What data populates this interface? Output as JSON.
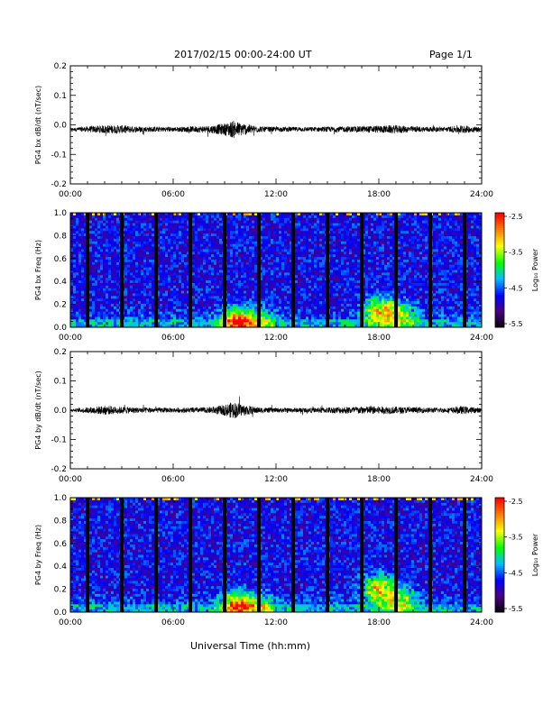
{
  "header": {
    "title": "2017/02/15  00:00-24:00 UT",
    "page": "Page 1/1"
  },
  "footer": {
    "xlabel": "Universal Time (hh:mm)"
  },
  "colorbar": {
    "title": "Log₁₀ Power",
    "ticks": [
      "-2.5",
      "-3.5",
      "-4.5",
      "-5.5"
    ],
    "range": [
      -5.5,
      -2.5
    ],
    "colors": [
      "#000000",
      "#4b0082",
      "#0000ff",
      "#00bfff",
      "#00ff00",
      "#ffff00",
      "#ff8000",
      "#ff0000"
    ]
  },
  "chart_data": [
    {
      "type": "line",
      "ylabel": "PG4 bx dB/dt (nT/sec)",
      "ylim": [
        -0.2,
        0.2
      ],
      "yticks": [
        "0.2",
        "0.1",
        "0.0",
        "-0.1",
        "-0.2"
      ],
      "xlim": [
        "00:00",
        "24:00"
      ],
      "xticks": [
        "00:00",
        "06:00",
        "12:00",
        "18:00",
        "24:00"
      ],
      "baseline": -0.015,
      "envelope": {
        "x": [
          "00:00",
          "01:00",
          "02:00",
          "03:00",
          "04:00",
          "06:00",
          "08:00",
          "09:00",
          "09:30",
          "10:00",
          "11:00",
          "12:00",
          "14:00",
          "16:00",
          "18:00",
          "19:00",
          "20:00",
          "22:00",
          "22:45",
          "24:00"
        ],
        "amplitude": [
          0.004,
          0.01,
          0.014,
          0.014,
          0.01,
          0.008,
          0.012,
          0.02,
          0.03,
          0.022,
          0.01,
          0.008,
          0.008,
          0.01,
          0.012,
          0.014,
          0.01,
          0.008,
          0.014,
          0.008
        ]
      }
    },
    {
      "type": "heatmap",
      "ylabel": "PG4 bx Freq (Hz)",
      "ylim": [
        0.0,
        1.0
      ],
      "yticks": [
        "1.0",
        "0.8",
        "0.6",
        "0.4",
        "0.2",
        "0.0"
      ],
      "xlim": [
        "00:00",
        "24:00"
      ],
      "xticks": [
        "00:00",
        "06:00",
        "12:00",
        "18:00",
        "24:00"
      ],
      "gaps": [
        "01:00",
        "03:00",
        "05:00",
        "07:00",
        "09:00",
        "11:00",
        "13:00",
        "15:00",
        "17:00",
        "19:00",
        "21:00",
        "23:00"
      ],
      "background_log_power": -4.7,
      "hotspots": [
        {
          "t": "09:40",
          "f": 0.05,
          "log_power": -2.9
        },
        {
          "t": "11:00",
          "f": 0.05,
          "log_power": -3.8
        },
        {
          "t": "18:00",
          "f": 0.15,
          "log_power": -3.3
        },
        {
          "t": "19:15",
          "f": 0.1,
          "log_power": -3.6
        }
      ]
    },
    {
      "type": "line",
      "ylabel": "PG4 by dB/dt (nT/sec)",
      "ylim": [
        -0.2,
        0.2
      ],
      "yticks": [
        "0.2",
        "0.1",
        "0.0",
        "-0.1",
        "-0.2"
      ],
      "xlim": [
        "00:00",
        "24:00"
      ],
      "xticks": [
        "00:00",
        "06:00",
        "12:00",
        "18:00",
        "24:00"
      ],
      "baseline": 0.0,
      "envelope": {
        "x": [
          "00:00",
          "01:00",
          "02:00",
          "03:00",
          "04:00",
          "06:00",
          "08:00",
          "09:00",
          "09:30",
          "10:00",
          "11:00",
          "12:00",
          "14:00",
          "16:00",
          "18:00",
          "19:00",
          "20:00",
          "22:00",
          "22:45",
          "24:00"
        ],
        "amplitude": [
          0.004,
          0.01,
          0.016,
          0.012,
          0.01,
          0.008,
          0.01,
          0.018,
          0.03,
          0.02,
          0.01,
          0.008,
          0.008,
          0.012,
          0.014,
          0.012,
          0.01,
          0.008,
          0.014,
          0.008
        ]
      }
    },
    {
      "type": "heatmap",
      "ylabel": "PG4 by Freq (Hz)",
      "ylim": [
        0.0,
        1.0
      ],
      "yticks": [
        "1.0",
        "0.8",
        "0.6",
        "0.4",
        "0.2",
        "0.0"
      ],
      "xlim": [
        "00:00",
        "24:00"
      ],
      "xticks": [
        "00:00",
        "06:00",
        "12:00",
        "18:00",
        "24:00"
      ],
      "gaps": [
        "01:00",
        "03:00",
        "05:00",
        "07:00",
        "09:00",
        "11:00",
        "13:00",
        "15:00",
        "17:00",
        "19:00",
        "21:00",
        "23:00"
      ],
      "background_log_power": -4.7,
      "hotspots": [
        {
          "t": "09:40",
          "f": 0.05,
          "log_power": -2.9
        },
        {
          "t": "11:00",
          "f": 0.05,
          "log_power": -3.8
        },
        {
          "t": "18:00",
          "f": 0.2,
          "log_power": -3.2
        },
        {
          "t": "19:15",
          "f": 0.1,
          "log_power": -3.6
        }
      ]
    }
  ]
}
